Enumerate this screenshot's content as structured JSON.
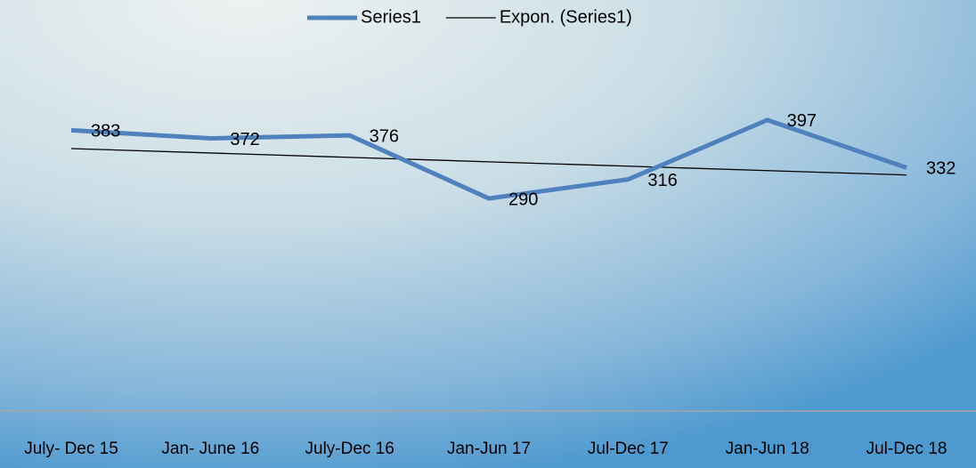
{
  "chart_data": {
    "type": "line",
    "categories": [
      "July- Dec 15",
      "Jan- June 16",
      "July-Dec 16",
      "Jan-Jun 17",
      "Jul-Dec 17",
      "Jan-Jun 18",
      "Jul-Dec 18"
    ],
    "series": [
      {
        "name": "Series1",
        "color": "#4f81bd",
        "values": [
          383,
          372,
          376,
          290,
          316,
          397,
          332
        ]
      },
      {
        "name": "Expon. (Series1)",
        "color": "#000000",
        "values": [
          358,
          352,
          346,
          340,
          334,
          328,
          322
        ]
      }
    ],
    "ylim": [
      0,
      500
    ],
    "legend": "top",
    "data_labels": [
      true,
      false
    ]
  }
}
